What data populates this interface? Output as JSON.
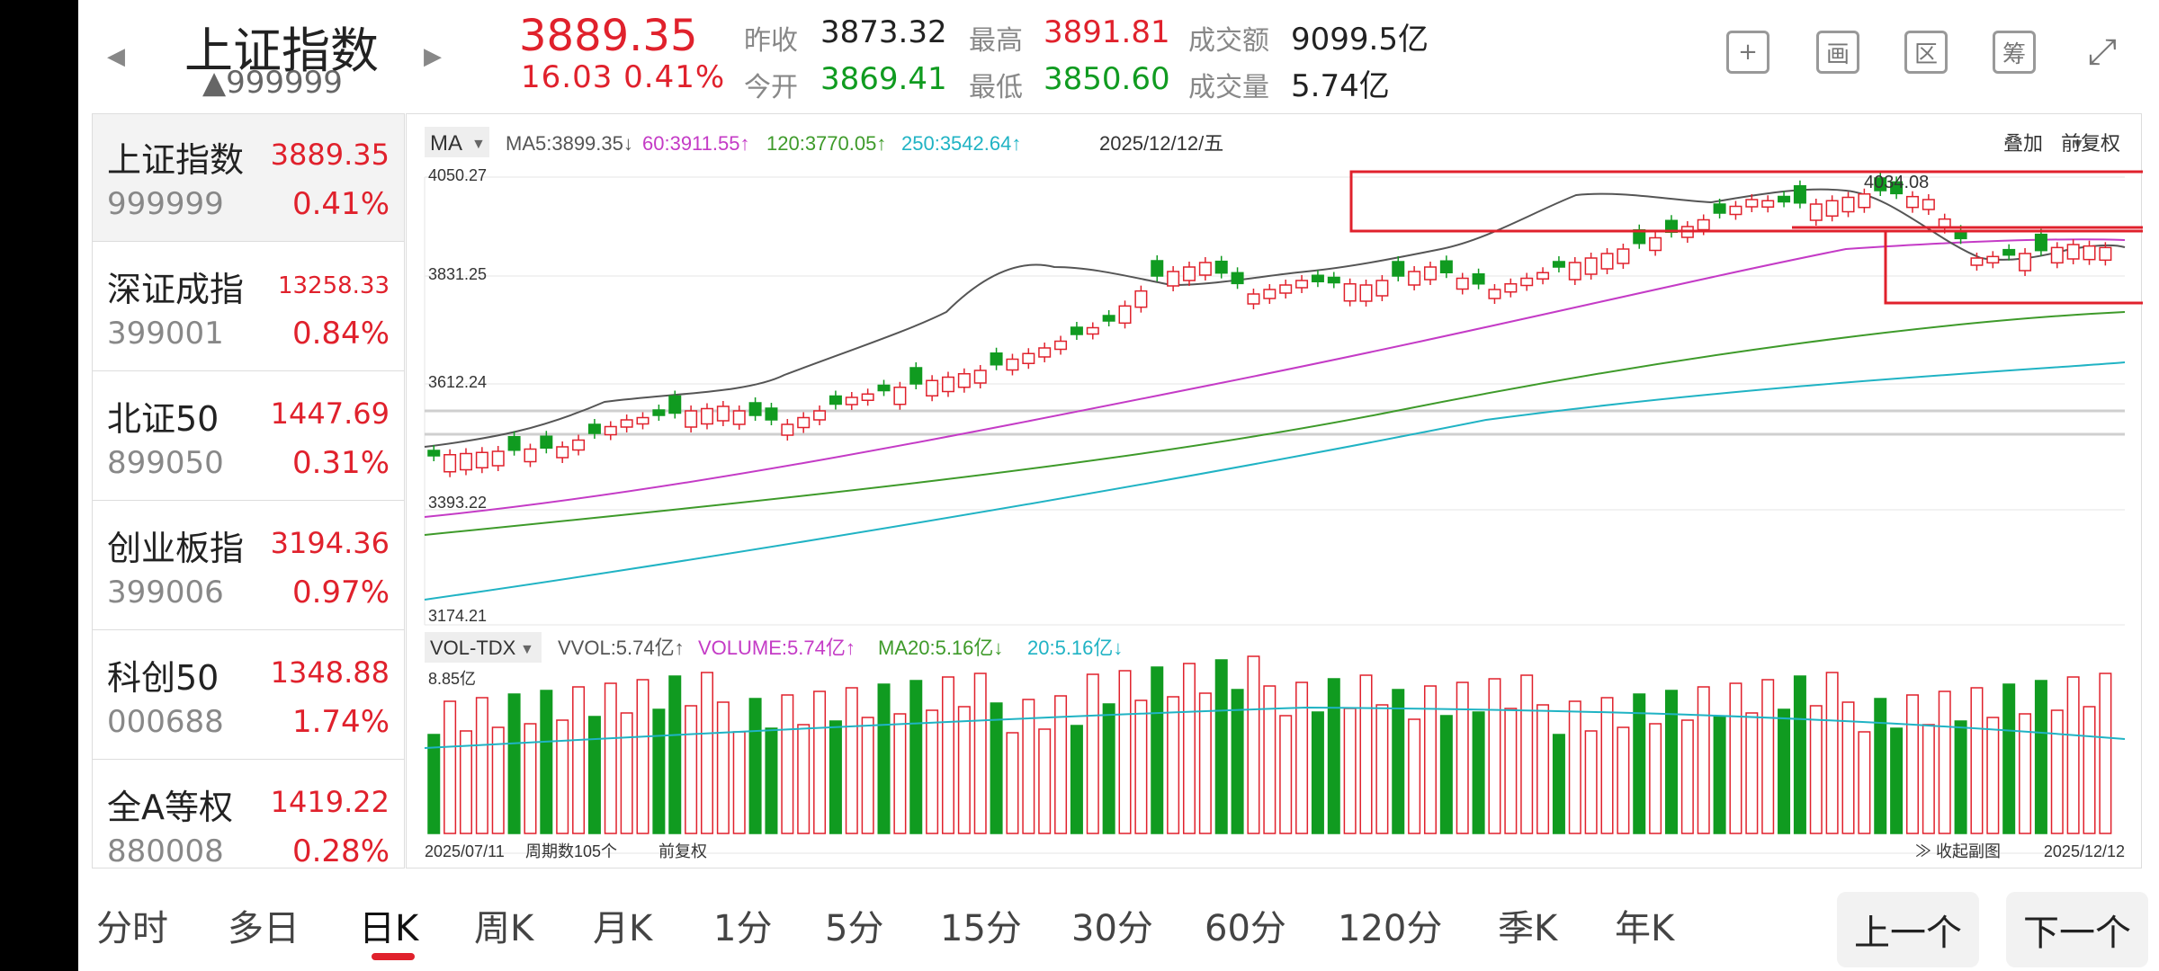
{
  "header": {
    "index_name": "上证指数",
    "index_code": "▲999999",
    "price": "3889.35",
    "change": "16.03  0.41%",
    "quotes": [
      {
        "label": "昨收",
        "value": "3873.32",
        "color": "#222222"
      },
      {
        "label": "最高",
        "value": "3891.81",
        "color": "#e0212c"
      },
      {
        "label": "成交额",
        "value": "9099.5亿",
        "color": "#222222"
      },
      {
        "label": "今开",
        "value": "3869.41",
        "color": "#109b20"
      },
      {
        "label": "最低",
        "value": "3850.60",
        "color": "#109b20"
      },
      {
        "label": "成交量",
        "value": "5.74亿",
        "color": "#222222"
      }
    ],
    "tools": [
      {
        "icon": "plus-square-icon",
        "glyph": "+"
      },
      {
        "icon": "draw-icon",
        "glyph": "画"
      },
      {
        "icon": "range-icon",
        "glyph": "区"
      },
      {
        "icon": "chips-icon",
        "glyph": "筹"
      },
      {
        "icon": "rotate-screen-icon",
        "glyph": "⤢"
      }
    ]
  },
  "sidebar": {
    "items": [
      {
        "name": "上证指数",
        "code": "999999",
        "price": "3889.35",
        "pct": "0.41%"
      },
      {
        "name": "深证成指",
        "code": "399001",
        "price": "13258.33",
        "pct": "0.84%"
      },
      {
        "name": "北证50",
        "code": "899050",
        "price": "1447.69",
        "pct": "0.31%"
      },
      {
        "name": "创业板指",
        "code": "399006",
        "price": "3194.36",
        "pct": "0.97%"
      },
      {
        "name": "科创50",
        "code": "000688",
        "price": "1348.88",
        "pct": "1.74%"
      },
      {
        "name": "全A等权",
        "code": "880008",
        "price": "1419.22",
        "pct": "0.28%"
      }
    ]
  },
  "chart": {
    "ma_label": "MA",
    "ma_legend": [
      {
        "text": "MA5:3899.35↓",
        "color": "#555555"
      },
      {
        "text": "60:3911.55↑",
        "color": "#c43bc6"
      },
      {
        "text": "120:3770.05↑",
        "color": "#3e9a2a"
      },
      {
        "text": "250:3542.64↑",
        "color": "#20b3c4"
      }
    ],
    "date_label": "2025/12/12/五",
    "overlay_label": "叠加",
    "adjust_label": "前复权",
    "y_labels": [
      "4050.27",
      "3831.25",
      "3612.24",
      "3393.22",
      "3174.21"
    ],
    "annotation": "4034.08",
    "vol_label": "VOL-TDX",
    "vol_legend": [
      {
        "text": "VVOL:5.74亿↑",
        "color": "#555555"
      },
      {
        "text": "VOLUME:5.74亿↑",
        "color": "#c43bc6"
      },
      {
        "text": "MA20:5.16亿↓",
        "color": "#3e9a2a"
      },
      {
        "text": "20:5.16亿↓",
        "color": "#20b3c4"
      }
    ],
    "vol_max": "8.85亿",
    "start_date": "2025/07/11",
    "period_count": "周期数105个",
    "restore": "前复权",
    "collapse": "≫ 收起副图",
    "end_date": "2025/12/12"
  },
  "nav": {
    "tabs": [
      "分时",
      "多日",
      "日K",
      "周K",
      "月K",
      "1分",
      "5分",
      "15分",
      "30分",
      "60分",
      "120分",
      "季K",
      "年K"
    ],
    "active": "日K",
    "prev": "上一个",
    "next": "下一个"
  },
  "colors": {
    "up": "#e0212c",
    "down": "#109b20",
    "ma5": "#555555",
    "ma60": "#c43bc6",
    "ma120": "#3e9a2a",
    "ma250": "#20b3c4",
    "box": "#e0212c"
  },
  "chart_data": {
    "type": "candlestick",
    "title": "上证指数 日K",
    "x_range": [
      "2025/07/11",
      "2025/12/12"
    ],
    "count": 105,
    "ylim": [
      3174.21,
      4050.27
    ],
    "last_bar": {
      "open": 3869.41,
      "high": 3891.81,
      "low": 3850.6,
      "close": 3889.35,
      "volume": "5.74亿"
    },
    "ma": {
      "MA5": 3899.35,
      "MA60": 3911.55,
      "MA120": 3770.05,
      "MA250": 3542.64
    },
    "vol_ylim": [
      0,
      8.85
    ],
    "vol_unit": "亿"
  }
}
